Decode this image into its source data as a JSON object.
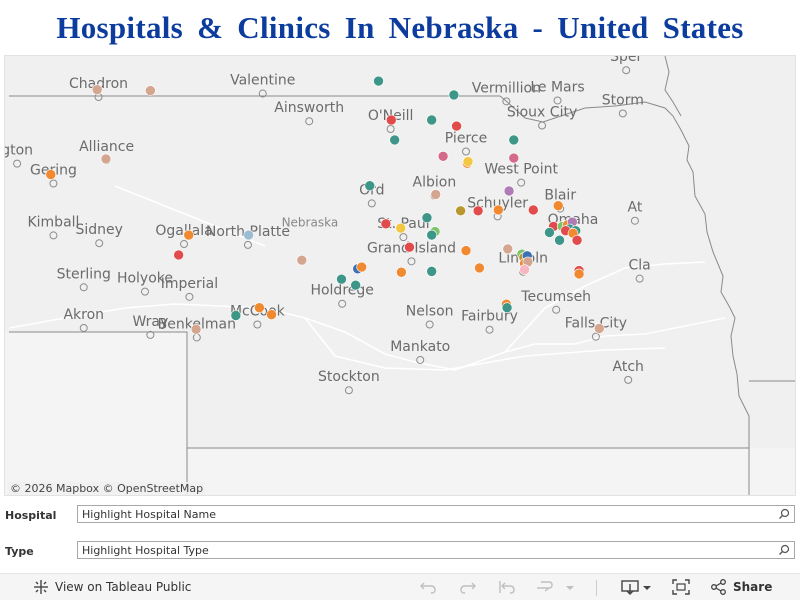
{
  "title": "Hospitals & Clinics In Nebraska - United States",
  "map": {
    "attribution": "© 2026 Mapbox  © OpenStreetMap",
    "state_label": "Nebraska",
    "places": [
      {
        "name": "Chadron",
        "lon": -102.99,
        "lat": 42.83
      },
      {
        "name": "Valentine",
        "lon": -100.55,
        "lat": 42.87
      },
      {
        "name": "Ainsworth",
        "lon": -99.86,
        "lat": 42.55
      },
      {
        "name": "O'Neill",
        "lon": -98.65,
        "lat": 42.46
      },
      {
        "name": "Vermillion",
        "lon": -96.93,
        "lat": 42.78
      },
      {
        "name": "Le Mars",
        "lon": -96.17,
        "lat": 42.79
      },
      {
        "name": "Sioux City",
        "lon": -96.4,
        "lat": 42.5
      },
      {
        "name": "Storm",
        "lon": -95.2,
        "lat": 42.64
      },
      {
        "name": "Sper",
        "lon": -95.15,
        "lat": 43.14
      },
      {
        "name": "Alliance",
        "lon": -102.87,
        "lat": 42.1
      },
      {
        "name": "Pierce",
        "lon": -97.53,
        "lat": 42.2
      },
      {
        "name": "gton",
        "lon": -104.2,
        "lat": 42.06
      },
      {
        "name": "Gering",
        "lon": -103.66,
        "lat": 41.83
      },
      {
        "name": "West Point",
        "lon": -96.71,
        "lat": 41.84
      },
      {
        "name": "Albion",
        "lon": -98.0,
        "lat": 41.69
      },
      {
        "name": "Ord",
        "lon": -98.93,
        "lat": 41.6
      },
      {
        "name": "Blair",
        "lon": -96.13,
        "lat": 41.54
      },
      {
        "name": "Schuyler",
        "lon": -97.06,
        "lat": 41.45
      },
      {
        "name": "At",
        "lon": -95.02,
        "lat": 41.4
      },
      {
        "name": "Kimball",
        "lon": -103.66,
        "lat": 41.23
      },
      {
        "name": "Sidney",
        "lon": -102.98,
        "lat": 41.14
      },
      {
        "name": "Ogallala",
        "lon": -101.72,
        "lat": 41.13
      },
      {
        "name": "North Platte",
        "lon": -100.77,
        "lat": 41.12
      },
      {
        "name": "St. Paul",
        "lon": -98.46,
        "lat": 41.21
      },
      {
        "name": "Omaha",
        "lon": -95.94,
        "lat": 41.26
      },
      {
        "name": "Grand Island",
        "lon": -98.34,
        "lat": 40.93
      },
      {
        "name": "Lincoln",
        "lon": -96.68,
        "lat": 40.81
      },
      {
        "name": "Cla",
        "lon": -94.95,
        "lat": 40.73
      },
      {
        "name": "Sterling",
        "lon": -103.21,
        "lat": 40.63
      },
      {
        "name": "Holyoke",
        "lon": -102.3,
        "lat": 40.58
      },
      {
        "name": "Imperial",
        "lon": -101.64,
        "lat": 40.52
      },
      {
        "name": "Holdrege",
        "lon": -99.37,
        "lat": 40.44
      },
      {
        "name": "Tecumseh",
        "lon": -96.19,
        "lat": 40.37
      },
      {
        "name": "Akron",
        "lon": -103.21,
        "lat": 40.16
      },
      {
        "name": "McCook",
        "lon": -100.63,
        "lat": 40.2
      },
      {
        "name": "Nelson",
        "lon": -98.07,
        "lat": 40.2
      },
      {
        "name": "Fairbury",
        "lon": -97.18,
        "lat": 40.14
      },
      {
        "name": "Wray",
        "lon": -102.22,
        "lat": 40.08
      },
      {
        "name": "Benkelman",
        "lon": -101.53,
        "lat": 40.05
      },
      {
        "name": "Falls City",
        "lon": -95.6,
        "lat": 40.06
      },
      {
        "name": "Mankato",
        "lon": -98.21,
        "lat": 39.79
      },
      {
        "name": "Atch",
        "lon": -95.12,
        "lat": 39.56
      },
      {
        "name": "Stockton",
        "lon": -99.27,
        "lat": 39.44
      }
    ],
    "hospitals": [
      {
        "lon": -103.01,
        "lat": 42.81,
        "color": "#d4a58f"
      },
      {
        "lon": -102.22,
        "lat": 42.8,
        "color": "#d4a58f"
      },
      {
        "lon": -98.83,
        "lat": 42.91,
        "color": "#3d9688"
      },
      {
        "lon": -97.71,
        "lat": 42.75,
        "color": "#3d9688"
      },
      {
        "lon": -98.64,
        "lat": 42.46,
        "color": "#e14b4b"
      },
      {
        "lon": -98.04,
        "lat": 42.46,
        "color": "#3d9688"
      },
      {
        "lon": -97.67,
        "lat": 42.39,
        "color": "#e14b4b"
      },
      {
        "lon": -98.59,
        "lat": 42.23,
        "color": "#3d9688"
      },
      {
        "lon": -96.82,
        "lat": 42.23,
        "color": "#3d9688"
      },
      {
        "lon": -97.87,
        "lat": 42.04,
        "color": "#d46a8a"
      },
      {
        "lon": -96.82,
        "lat": 42.02,
        "color": "#d46a8a"
      },
      {
        "lon": -102.88,
        "lat": 42.01,
        "color": "#d4a58f"
      },
      {
        "lon": -97.51,
        "lat": 41.96,
        "color": "#f0892f"
      },
      {
        "lon": -97.5,
        "lat": 41.98,
        "color": "#f2c744"
      },
      {
        "lon": -103.7,
        "lat": 41.83,
        "color": "#f0892f"
      },
      {
        "lon": -98.96,
        "lat": 41.7,
        "color": "#3d9688"
      },
      {
        "lon": -96.89,
        "lat": 41.64,
        "color": "#b07ab5"
      },
      {
        "lon": -97.98,
        "lat": 41.6,
        "color": "#d4a58f"
      },
      {
        "lon": -96.16,
        "lat": 41.47,
        "color": "#f0892f"
      },
      {
        "lon": -97.61,
        "lat": 41.41,
        "color": "#b8982e"
      },
      {
        "lon": -97.35,
        "lat": 41.41,
        "color": "#e14b4b"
      },
      {
        "lon": -97.05,
        "lat": 41.42,
        "color": "#f0892f"
      },
      {
        "lon": -96.53,
        "lat": 41.42,
        "color": "#e14b4b"
      },
      {
        "lon": -98.11,
        "lat": 41.33,
        "color": "#3d9688"
      },
      {
        "lon": -98.72,
        "lat": 41.26,
        "color": "#e14b4b"
      },
      {
        "lon": -98.5,
        "lat": 41.21,
        "color": "#f2c744"
      },
      {
        "lon": -97.99,
        "lat": 41.17,
        "color": "#7dc36b"
      },
      {
        "lon": -98.04,
        "lat": 41.13,
        "color": "#3d9688"
      },
      {
        "lon": -96.23,
        "lat": 41.23,
        "color": "#e14b4b"
      },
      {
        "lon": -96.1,
        "lat": 41.23,
        "color": "#7dc36b"
      },
      {
        "lon": -96.02,
        "lat": 41.25,
        "color": "#f0892f"
      },
      {
        "lon": -95.95,
        "lat": 41.28,
        "color": "#b07ab5"
      },
      {
        "lon": -95.99,
        "lat": 41.2,
        "color": "#3d9688"
      },
      {
        "lon": -96.05,
        "lat": 41.18,
        "color": "#e14b4b"
      },
      {
        "lon": -95.9,
        "lat": 41.18,
        "color": "#3d9688"
      },
      {
        "lon": -95.94,
        "lat": 41.15,
        "color": "#f0892f"
      },
      {
        "lon": -96.29,
        "lat": 41.16,
        "color": "#3d9688"
      },
      {
        "lon": -96.14,
        "lat": 41.07,
        "color": "#3d9688"
      },
      {
        "lon": -95.88,
        "lat": 41.07,
        "color": "#e14b4b"
      },
      {
        "lon": -101.65,
        "lat": 41.13,
        "color": "#f0892f"
      },
      {
        "lon": -100.76,
        "lat": 41.13,
        "color": "#9cbcd4"
      },
      {
        "lon": -98.37,
        "lat": 40.99,
        "color": "#e14b4b"
      },
      {
        "lon": -97.53,
        "lat": 40.95,
        "color": "#f0892f"
      },
      {
        "lon": -96.91,
        "lat": 40.97,
        "color": "#d4a58f"
      },
      {
        "lon": -96.7,
        "lat": 40.91,
        "color": "#7dc36b"
      },
      {
        "lon": -96.67,
        "lat": 40.87,
        "color": "#b8982e"
      },
      {
        "lon": -96.62,
        "lat": 40.89,
        "color": "#3d6fb5"
      },
      {
        "lon": -96.66,
        "lat": 40.8,
        "color": "#f0892f"
      },
      {
        "lon": -96.61,
        "lat": 40.82,
        "color": "#d4a58f"
      },
      {
        "lon": -96.66,
        "lat": 40.73,
        "color": "#f7b6c2"
      },
      {
        "lon": -101.8,
        "lat": 40.9,
        "color": "#e14b4b"
      },
      {
        "lon": -99.97,
        "lat": 40.84,
        "color": "#d4a58f"
      },
      {
        "lon": -99.14,
        "lat": 40.74,
        "color": "#3d6fb5"
      },
      {
        "lon": -99.08,
        "lat": 40.76,
        "color": "#f0892f"
      },
      {
        "lon": -98.49,
        "lat": 40.7,
        "color": "#f0892f"
      },
      {
        "lon": -98.04,
        "lat": 40.71,
        "color": "#3d9688"
      },
      {
        "lon": -97.33,
        "lat": 40.75,
        "color": "#f0892f"
      },
      {
        "lon": -99.38,
        "lat": 40.62,
        "color": "#3d9688"
      },
      {
        "lon": -99.17,
        "lat": 40.55,
        "color": "#3d9688"
      },
      {
        "lon": -95.85,
        "lat": 40.72,
        "color": "#e14b4b"
      },
      {
        "lon": -95.85,
        "lat": 40.68,
        "color": "#f0892f"
      },
      {
        "lon": -100.95,
        "lat": 40.2,
        "color": "#3d9688"
      },
      {
        "lon": -100.42,
        "lat": 40.21,
        "color": "#f0892f"
      },
      {
        "lon": -100.6,
        "lat": 40.29,
        "color": "#f0892f"
      },
      {
        "lon": -96.93,
        "lat": 40.33,
        "color": "#f0892f"
      },
      {
        "lon": -96.92,
        "lat": 40.29,
        "color": "#3d9688"
      },
      {
        "lon": -101.54,
        "lat": 40.04,
        "color": "#d4a58f"
      },
      {
        "lon": -95.55,
        "lat": 40.05,
        "color": "#d4a58f"
      }
    ]
  },
  "filters": {
    "hospital": {
      "label": "Hospital",
      "placeholder": "Highlight Hospital Name"
    },
    "type": {
      "label": "Type",
      "placeholder": "Highlight Hospital Type"
    }
  },
  "toolbar": {
    "view_label": "View on Tableau Public",
    "share_label": "Share"
  }
}
